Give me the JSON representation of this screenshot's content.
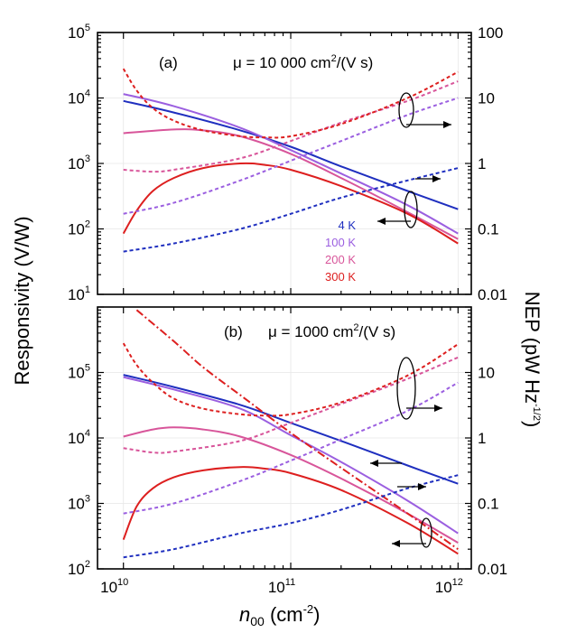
{
  "chart_data": [
    {
      "type": "line",
      "panel": "(a)",
      "mobility_label": "μ = 10 000 cm²/(V s)",
      "xlabel": "n00 (cm-2)",
      "ylabel_left": "Responsivity (V/W)",
      "ylabel_right": "NEP (pW Hz-1/2)",
      "xscale": "log",
      "xlim": [
        7000000000.0,
        1200000000000.0
      ],
      "ylim_left": [
        10,
        100000
      ],
      "ylim_right": [
        0.01,
        100
      ],
      "x_ticks": [
        "10^10",
        "10^11",
        "10^12"
      ],
      "y_left_ticks": [
        "10^1",
        "10^2",
        "10^3",
        "10^4",
        "10^5"
      ],
      "y_right_ticks": [
        "0.01",
        "0.1",
        "1",
        "10",
        "100"
      ],
      "legend": [
        {
          "label": "4 K",
          "color": "#1f2fbf"
        },
        {
          "label": "100 K",
          "color": "#9b5fe0"
        },
        {
          "label": "200 K",
          "color": "#d8559a"
        },
        {
          "label": "300 K",
          "color": "#dd1f1f"
        }
      ],
      "series": [
        {
          "name": "4 K responsivity",
          "axis": "left",
          "style": "solid",
          "color": "#1f2fbf",
          "x": [
            10000000000.0,
            20000000000.0,
            50000000000.0,
            100000000000.0,
            200000000000.0,
            500000000000.0,
            1000000000000.0
          ],
          "values": [
            9000,
            6000,
            3200,
            1800,
            900,
            380,
            200
          ]
        },
        {
          "name": "100 K responsivity",
          "axis": "left",
          "style": "solid",
          "color": "#9b5fe0",
          "x": [
            10000000000.0,
            20000000000.0,
            50000000000.0,
            100000000000.0,
            200000000000.0,
            500000000000.0,
            1000000000000.0
          ],
          "values": [
            11500,
            7500,
            3500,
            1600,
            700,
            230,
            85
          ]
        },
        {
          "name": "200 K responsivity",
          "axis": "left",
          "style": "solid",
          "color": "#d8559a",
          "x": [
            10000000000.0,
            20000000000.0,
            30000000000.0,
            50000000000.0,
            100000000000.0,
            200000000000.0,
            500000000000.0,
            1000000000000.0
          ],
          "values": [
            2900,
            3300,
            3200,
            2600,
            1400,
            600,
            180,
            70
          ]
        },
        {
          "name": "300 K responsivity",
          "axis": "left",
          "style": "solid",
          "color": "#dd1f1f",
          "x": [
            10000000000.0,
            12000000000.0,
            15000000000.0,
            20000000000.0,
            30000000000.0,
            50000000000.0,
            70000000000.0,
            100000000000.0,
            200000000000.0,
            500000000000.0,
            1000000000000.0
          ],
          "values": [
            85,
            190,
            380,
            600,
            850,
            1000,
            950,
            800,
            450,
            170,
            60
          ]
        },
        {
          "name": "4 K NEP",
          "axis": "right",
          "style": "dashed",
          "color": "#1f2fbf",
          "x": [
            10000000000.0,
            20000000000.0,
            50000000000.0,
            100000000000.0,
            200000000000.0,
            500000000000.0,
            1000000000000.0
          ],
          "values": [
            0.045,
            0.06,
            0.1,
            0.17,
            0.3,
            0.55,
            0.85
          ]
        },
        {
          "name": "100 K NEP",
          "axis": "right",
          "style": "dashed",
          "color": "#9b5fe0",
          "x": [
            10000000000.0,
            20000000000.0,
            50000000000.0,
            100000000000.0,
            200000000000.0,
            500000000000.0,
            1000000000000.0
          ],
          "values": [
            0.17,
            0.25,
            0.55,
            1.1,
            2.2,
            5.5,
            10
          ]
        },
        {
          "name": "200 K NEP",
          "axis": "right",
          "style": "dashed",
          "color": "#d8559a",
          "x": [
            10000000000.0,
            15000000000.0,
            20000000000.0,
            50000000000.0,
            100000000000.0,
            200000000000.0,
            500000000000.0,
            1000000000000.0
          ],
          "values": [
            0.8,
            0.75,
            0.8,
            1.2,
            2.2,
            4.2,
            9,
            18
          ]
        },
        {
          "name": "300 K NEP",
          "axis": "right",
          "style": "dashed",
          "color": "#dd1f1f",
          "x": [
            10000000000.0,
            12000000000.0,
            15000000000.0,
            20000000000.0,
            30000000000.0,
            50000000000.0,
            70000000000.0,
            100000000000.0,
            200000000000.0,
            500000000000.0,
            1000000000000.0
          ],
          "values": [
            28,
            13,
            7,
            4.5,
            3.2,
            2.6,
            2.5,
            2.6,
            4,
            10,
            25
          ]
        }
      ]
    },
    {
      "type": "line",
      "panel": "(b)",
      "mobility_label": "μ = 1000 cm²/(V s)",
      "xscale": "log",
      "xlim": [
        7000000000.0,
        1200000000000.0
      ],
      "ylim_left": [
        100,
        1000000
      ],
      "ylim_right": [
        0.01,
        100
      ],
      "x_ticks": [
        "10^10",
        "10^11",
        "10^12"
      ],
      "y_left_ticks": [
        "10^2",
        "10^3",
        "10^4",
        "10^5"
      ],
      "y_right_ticks": [
        "0.01",
        "0.1",
        "1",
        "10"
      ],
      "series": [
        {
          "name": "4 K responsivity",
          "axis": "left",
          "style": "solid",
          "color": "#1f2fbf",
          "x": [
            10000000000.0,
            20000000000.0,
            50000000000.0,
            100000000000.0,
            200000000000.0,
            500000000000.0,
            1000000000000.0
          ],
          "values": [
            92000,
            60000,
            32000,
            17000,
            9000,
            3800,
            2000
          ]
        },
        {
          "name": "100 K responsivity",
          "axis": "left",
          "style": "solid",
          "color": "#9b5fe0",
          "x": [
            10000000000.0,
            20000000000.0,
            50000000000.0,
            100000000000.0,
            200000000000.0,
            500000000000.0,
            1000000000000.0
          ],
          "values": [
            85000,
            55000,
            28000,
            11000,
            4300,
            1100,
            350
          ]
        },
        {
          "name": "200 K responsivity",
          "axis": "left",
          "style": "solid",
          "color": "#d8559a",
          "x": [
            10000000000.0,
            15000000000.0,
            20000000000.0,
            30000000000.0,
            50000000000.0,
            100000000000.0,
            200000000000.0,
            500000000000.0,
            1000000000000.0
          ],
          "values": [
            10500,
            13500,
            14500,
            13500,
            10500,
            5500,
            2400,
            700,
            250
          ]
        },
        {
          "name": "300 K responsivity",
          "axis": "left",
          "style": "solid",
          "color": "#dd1f1f",
          "x": [
            10000000000.0,
            12000000000.0,
            15000000000.0,
            20000000000.0,
            30000000000.0,
            50000000000.0,
            70000000000.0,
            100000000000.0,
            200000000000.0,
            500000000000.0,
            1000000000000.0
          ],
          "values": [
            280,
            900,
            1700,
            2500,
            3200,
            3600,
            3400,
            2900,
            1600,
            500,
            170
          ]
        },
        {
          "name": "300 K responsivity (dash-dot)",
          "axis": "left",
          "style": "dashdot",
          "color": "#dd1f1f",
          "x": [
            12000000000.0,
            20000000000.0,
            30000000000.0,
            50000000000.0,
            100000000000.0,
            200000000000.0,
            500000000000.0,
            1000000000000.0
          ],
          "values": [
            900000,
            300000,
            120000,
            45000,
            12000,
            3500,
            700,
            200
          ]
        },
        {
          "name": "4 K NEP",
          "axis": "right",
          "style": "dashed",
          "color": "#1f2fbf",
          "x": [
            10000000000.0,
            20000000000.0,
            50000000000.0,
            100000000000.0,
            200000000000.0,
            500000000000.0,
            1000000000000.0
          ],
          "values": [
            0.015,
            0.02,
            0.035,
            0.05,
            0.08,
            0.17,
            0.27
          ]
        },
        {
          "name": "100 K NEP",
          "axis": "right",
          "style": "dashed",
          "color": "#9b5fe0",
          "x": [
            10000000000.0,
            20000000000.0,
            50000000000.0,
            100000000000.0,
            200000000000.0,
            500000000000.0,
            1000000000000.0
          ],
          "values": [
            0.07,
            0.1,
            0.22,
            0.45,
            0.95,
            2.6,
            7
          ]
        },
        {
          "name": "200 K NEP",
          "axis": "right",
          "style": "dashed",
          "color": "#d8559a",
          "x": [
            10000000000.0,
            15000000000.0,
            20000000000.0,
            50000000000.0,
            100000000000.0,
            200000000000.0,
            500000000000.0,
            1000000000000.0
          ],
          "values": [
            0.7,
            0.6,
            0.62,
            0.9,
            1.7,
            3.3,
            8,
            17
          ]
        },
        {
          "name": "300 K NEP",
          "axis": "right",
          "style": "dashed",
          "color": "#dd1f1f",
          "x": [
            10000000000.0,
            12000000000.0,
            15000000000.0,
            20000000000.0,
            30000000000.0,
            50000000000.0,
            70000000000.0,
            100000000000.0,
            200000000000.0,
            500000000000.0,
            1000000000000.0
          ],
          "values": [
            28,
            13,
            7,
            4,
            2.8,
            2.3,
            2.2,
            2.3,
            3.5,
            9,
            27
          ]
        }
      ]
    }
  ],
  "labels": {
    "panel_a": "(a)",
    "panel_b": "(b)",
    "mu_a_prefix": "μ = 10 000 cm",
    "mu_b_prefix": "μ = 1000 cm",
    "mu_suffix": "/(V s)",
    "sup_2": "2",
    "x_axis_main": "n",
    "x_axis_sub": "00",
    "x_axis_unit": " (cm",
    "x_axis_exp": "-2",
    "x_axis_close": ")",
    "y_left": "Responsivity (V/W)",
    "y_right_main": "NEP (pW Hz",
    "y_right_exp": "-1/2",
    "y_right_close": ")",
    "tick_base": "10"
  },
  "colors": {
    "k4": "#1f2fbf",
    "k100": "#9b5fe0",
    "k200": "#d8559a",
    "k300": "#dd1f1f"
  }
}
